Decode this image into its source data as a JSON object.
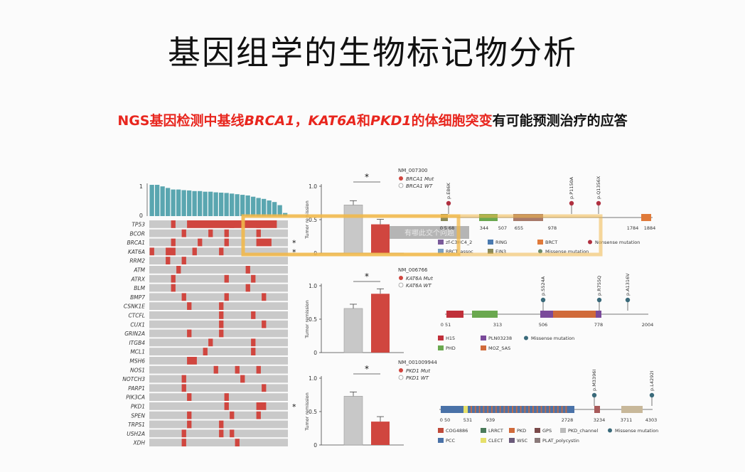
{
  "title": "基因组学的生物标记物分析",
  "subtitle": {
    "p1": "NGS基因检测中基线",
    "g1": "BRCA1",
    "p2": "，",
    "g2": "KAT6A",
    "p3": "和",
    "g3": "PKD1",
    "p4": "的体细胞突变",
    "p5": "有可能预测治疗的应答"
  },
  "oncoprint": {
    "genes": [
      "TP53",
      "BCOR",
      "BRCA1",
      "KAT6A",
      "RRM2",
      "ATM",
      "ATRX",
      "BLM",
      "BMP7",
      "CSNK1E",
      "CTCFL",
      "CUX1",
      "GRIN2A",
      "ITGB4",
      "MCL1",
      "MSH6",
      "NOS1",
      "NOTCH3",
      "PARP1",
      "PIK3CA",
      "PKD1",
      "SPEN",
      "TRPS1",
      "USH2A",
      "XDH"
    ],
    "star_rows": [
      2,
      3,
      20
    ],
    "star": "*",
    "top_axis_ticks": [
      "1",
      "0"
    ],
    "top_bars": [
      1.0,
      1.0,
      0.95,
      0.9,
      0.85,
      0.85,
      0.83,
      0.82,
      0.8,
      0.8,
      0.78,
      0.78,
      0.76,
      0.75,
      0.74,
      0.72,
      0.7,
      0.68,
      0.66,
      0.62,
      0.58,
      0.55,
      0.5,
      0.45,
      0.35,
      0.1
    ],
    "mutations": [
      [
        [
          4,
          1
        ],
        [
          7,
          14
        ],
        [
          15,
          1
        ],
        [
          20,
          4
        ]
      ],
      [
        [
          6,
          1
        ],
        [
          11,
          1
        ],
        [
          14,
          1
        ],
        [
          20,
          1
        ]
      ],
      [
        [
          4,
          1
        ],
        [
          9,
          1
        ],
        [
          14,
          1
        ],
        [
          20,
          3
        ]
      ],
      [
        [
          0,
          1
        ],
        [
          3,
          2
        ],
        [
          8,
          1
        ],
        [
          13,
          1
        ]
      ],
      [
        [
          3,
          1
        ],
        [
          6,
          1
        ]
      ],
      [
        [
          5,
          1
        ],
        [
          18,
          1
        ]
      ],
      [
        [
          4,
          1
        ],
        [
          14,
          1
        ],
        [
          19,
          1
        ]
      ],
      [
        [
          4,
          1
        ],
        [
          18,
          1
        ]
      ],
      [
        [
          6,
          1
        ],
        [
          14,
          1
        ],
        [
          21,
          1
        ]
      ],
      [
        [
          7,
          1
        ],
        [
          13,
          1
        ]
      ],
      [
        [
          13,
          1
        ],
        [
          19,
          1
        ]
      ],
      [
        [
          13,
          1
        ],
        [
          21,
          1
        ]
      ],
      [
        [
          7,
          1
        ],
        [
          13,
          1
        ]
      ],
      [
        [
          11,
          1
        ],
        [
          19,
          1
        ]
      ],
      [
        [
          10,
          1
        ],
        [
          19,
          1
        ]
      ],
      [
        [
          7,
          2
        ]
      ],
      [
        [
          12,
          1
        ],
        [
          16,
          1
        ],
        [
          20,
          1
        ]
      ],
      [
        [
          6,
          1
        ],
        [
          17,
          1
        ]
      ],
      [
        [
          6,
          1
        ],
        [
          21,
          1
        ]
      ],
      [
        [
          7,
          1
        ],
        [
          14,
          1
        ]
      ],
      [
        [
          14,
          1
        ],
        [
          20,
          2
        ]
      ],
      [
        [
          7,
          1
        ],
        [
          15,
          1
        ],
        [
          20,
          1
        ]
      ],
      [
        [
          7,
          1
        ],
        [
          13,
          1
        ]
      ],
      [
        [
          6,
          1
        ],
        [
          13,
          1
        ],
        [
          15,
          1
        ]
      ],
      [
        [
          6,
          1
        ],
        [
          16,
          1
        ]
      ]
    ]
  },
  "bar_charts": [
    {
      "gene": "BRCA1",
      "nm": "NM_007300",
      "legend": [
        "BRCA1 Mut",
        "BRCA1 WT"
      ],
      "ylabel": "Tumor remission",
      "ticks": [
        "1.0",
        "0.5",
        "0"
      ],
      "wt": 0.72,
      "mut": 0.43,
      "star": "*",
      "overlay": "有哪此交个问题"
    },
    {
      "gene": "KAT6A",
      "nm": "NM_006766",
      "legend": [
        "KAT6A Mut",
        "KAT6A WT"
      ],
      "ylabel": "Tumor remission",
      "ticks": [
        "1.0",
        "0.5",
        "0"
      ],
      "wt": 0.66,
      "mut": 0.88,
      "star": "*"
    },
    {
      "gene": "PKD1",
      "nm": "NM_001009944",
      "legend": [
        "PKD1 Mut",
        "PKD1 WT"
      ],
      "ylabel": "Tumor remission",
      "ticks": [
        "1.0",
        "0.5",
        "0"
      ],
      "wt": 0.73,
      "mut": 0.35,
      "star": "*"
    }
  ],
  "lollipops": [
    {
      "ticks": [
        "0",
        "5 68",
        "344",
        "507",
        "655",
        "978",
        "1784",
        "1884"
      ],
      "mutations": [
        "p.E86K",
        "p.P1150A",
        "p.Q1356X"
      ],
      "legend": [
        "zf-C3HC4_2",
        "RING",
        "BRCT",
        "Nonsense mutation",
        "BRCT_assoc",
        "EIN3",
        "Missense mutation"
      ]
    },
    {
      "ticks": [
        "0 51",
        "313",
        "506",
        "778",
        "2004"
      ],
      "mutations": [
        "p.S524A",
        "p.R755Q",
        "p.A1316V"
      ],
      "legend": [
        "H15",
        "PLN03238",
        "Missense mutation",
        "PHD",
        "MOZ_SAS"
      ]
    },
    {
      "ticks": [
        "0 50",
        "531",
        "939",
        "2728",
        "3234",
        "3711",
        "4303"
      ],
      "mutations": [
        "p.M3396I",
        "p.L4292I"
      ],
      "legend": [
        "COG4886",
        "LRRCT",
        "PKD",
        "GPS",
        "PKD_channel",
        "Missense mutation",
        "PCC",
        "CLECT",
        "WSC",
        "PLAT_polycystin"
      ]
    }
  ],
  "colors": {
    "mut": "#d0463f",
    "wt": "#c8c8c8",
    "bar_top": "#5aa6b0",
    "row_bg": "#c9c9c9",
    "highlight": "#f1b84a",
    "title_red": "#e8261e"
  }
}
